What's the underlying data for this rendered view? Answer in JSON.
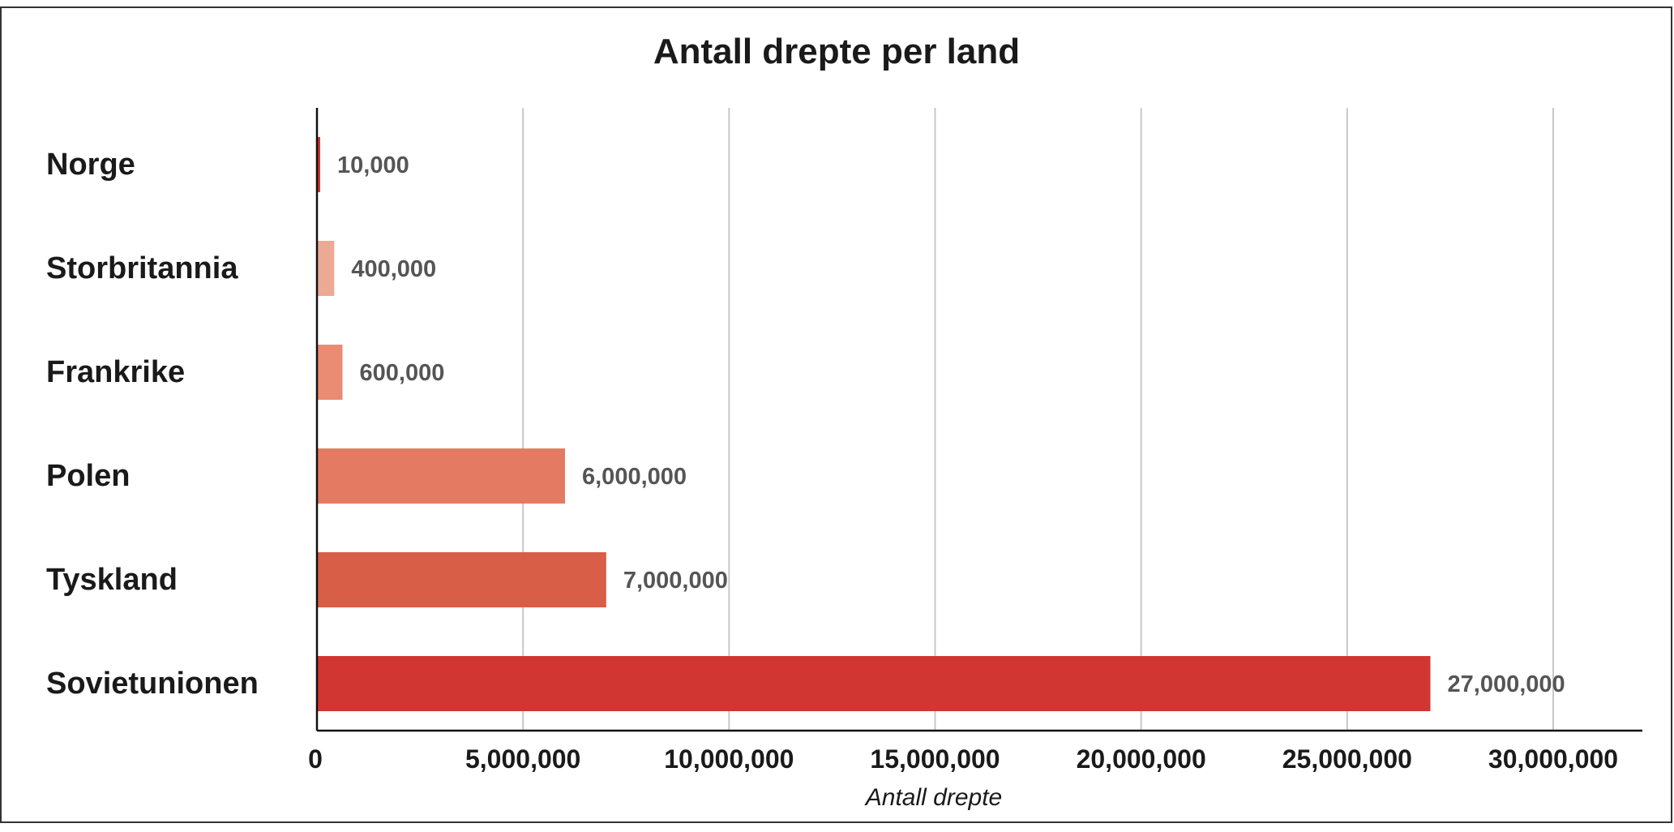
{
  "chart_data": {
    "type": "bar",
    "orientation": "horizontal",
    "title": "Antall drepte per land",
    "xlabel": "Antall drepte",
    "ylabel": "",
    "xlim": [
      0,
      32000000
    ],
    "x_ticks": [
      0,
      5000000,
      10000000,
      15000000,
      20000000,
      25000000,
      30000000
    ],
    "x_tick_labels": [
      "0",
      "5,000,000",
      "10,000,000",
      "15,000,000",
      "20,000,000",
      "25,000,000",
      "30,000,000"
    ],
    "grid": true,
    "categories": [
      "Norge",
      "Storbritannia",
      "Frankrike",
      "Polen",
      "Tyskland",
      "Sovietunionen"
    ],
    "values": [
      10000,
      400000,
      600000,
      6000000,
      7000000,
      27000000
    ],
    "value_labels": [
      "10,000",
      "400,000",
      "600,000",
      "6,000,000",
      "7,000,000",
      "27,000,000"
    ],
    "colors": [
      "#d0342c",
      "#ecaa95",
      "#e98c73",
      "#e57a62",
      "#d95e47",
      "#d13632"
    ]
  }
}
